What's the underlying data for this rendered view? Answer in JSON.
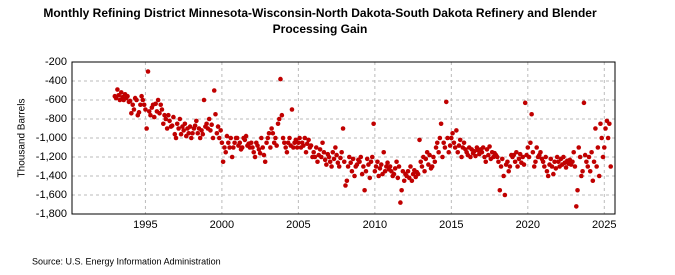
{
  "chart_data": {
    "type": "scatter",
    "title": "Monthly Refining District Minnesota-Wisconsin-North Dakota-South Dakota Refinery and Blender Processing Gain",
    "ylabel": "Thousand Barrels",
    "source": "Source: U.S. Energy Information Administration",
    "color": "#c00000",
    "grid": true,
    "xlim": [
      1990.2,
      2025.7
    ],
    "xticks": [
      1995,
      2000,
      2005,
      2010,
      2015,
      2020,
      2025
    ],
    "ylim": [
      -1800,
      -200
    ],
    "yticks": [
      -200,
      -400,
      -600,
      -800,
      {
        "value": -1000,
        "label": "-1,000"
      },
      {
        "value": -1200,
        "label": "-1,200"
      },
      {
        "value": -1400,
        "label": "-1,400"
      },
      {
        "value": -1600,
        "label": "-1,600"
      },
      {
        "value": -1800,
        "label": "-1,800"
      }
    ],
    "x": [
      1993.0,
      1993.08,
      1993.17,
      1993.25,
      1993.33,
      1993.42,
      1993.5,
      1993.58,
      1993.67,
      1993.75,
      1993.83,
      1993.92,
      1994.0,
      1994.08,
      1994.17,
      1994.25,
      1994.33,
      1994.42,
      1994.5,
      1994.58,
      1994.67,
      1994.75,
      1994.83,
      1994.92,
      1995.0,
      1995.08,
      1995.17,
      1995.25,
      1995.33,
      1995.42,
      1995.5,
      1995.58,
      1995.67,
      1995.75,
      1995.83,
      1995.92,
      1996.0,
      1996.08,
      1996.17,
      1996.25,
      1996.33,
      1996.42,
      1996.5,
      1996.58,
      1996.67,
      1996.75,
      1996.83,
      1996.92,
      1997.0,
      1997.08,
      1997.17,
      1997.25,
      1997.33,
      1997.42,
      1997.5,
      1997.58,
      1997.67,
      1997.75,
      1997.83,
      1997.92,
      1998.0,
      1998.08,
      1998.17,
      1998.25,
      1998.33,
      1998.42,
      1998.5,
      1998.58,
      1998.67,
      1998.75,
      1998.83,
      1998.92,
      1999.0,
      1999.08,
      1999.17,
      1999.25,
      1999.33,
      1999.42,
      1999.5,
      1999.58,
      1999.67,
      1999.75,
      1999.83,
      1999.92,
      2000.0,
      2000.08,
      2000.17,
      2000.25,
      2000.33,
      2000.42,
      2000.5,
      2000.58,
      2000.67,
      2000.75,
      2000.83,
      2000.92,
      2001.0,
      2001.08,
      2001.17,
      2001.25,
      2001.33,
      2001.42,
      2001.5,
      2001.58,
      2001.67,
      2001.75,
      2001.83,
      2001.92,
      2002.0,
      2002.08,
      2002.17,
      2002.25,
      2002.33,
      2002.42,
      2002.5,
      2002.58,
      2002.67,
      2002.75,
      2002.83,
      2002.92,
      2003.0,
      2003.08,
      2003.17,
      2003.25,
      2003.33,
      2003.42,
      2003.5,
      2003.58,
      2003.67,
      2003.75,
      2003.83,
      2003.92,
      2004.0,
      2004.08,
      2004.17,
      2004.25,
      2004.33,
      2004.42,
      2004.5,
      2004.58,
      2004.67,
      2004.75,
      2004.83,
      2004.92,
      2005.0,
      2005.08,
      2005.17,
      2005.25,
      2005.33,
      2005.42,
      2005.5,
      2005.58,
      2005.67,
      2005.75,
      2005.83,
      2005.92,
      2006.0,
      2006.08,
      2006.17,
      2006.25,
      2006.33,
      2006.42,
      2006.5,
      2006.58,
      2006.67,
      2006.75,
      2006.83,
      2006.92,
      2007.0,
      2007.08,
      2007.17,
      2007.25,
      2007.33,
      2007.42,
      2007.5,
      2007.58,
      2007.67,
      2007.75,
      2007.83,
      2007.92,
      2008.0,
      2008.08,
      2008.17,
      2008.25,
      2008.33,
      2008.42,
      2008.5,
      2008.58,
      2008.67,
      2008.75,
      2008.83,
      2008.92,
      2009.0,
      2009.08,
      2009.17,
      2009.25,
      2009.33,
      2009.42,
      2009.5,
      2009.58,
      2009.67,
      2009.75,
      2009.83,
      2009.92,
      2010.0,
      2010.08,
      2010.17,
      2010.25,
      2010.33,
      2010.42,
      2010.5,
      2010.58,
      2010.67,
      2010.75,
      2010.83,
      2010.92,
      2011.0,
      2011.08,
      2011.17,
      2011.25,
      2011.33,
      2011.42,
      2011.5,
      2011.58,
      2011.67,
      2011.75,
      2011.83,
      2011.92,
      2012.0,
      2012.08,
      2012.17,
      2012.25,
      2012.33,
      2012.42,
      2012.5,
      2012.58,
      2012.67,
      2012.75,
      2012.83,
      2012.92,
      2013.0,
      2013.08,
      2013.17,
      2013.25,
      2013.33,
      2013.42,
      2013.5,
      2013.58,
      2013.67,
      2013.75,
      2013.83,
      2013.92,
      2014.0,
      2014.08,
      2014.17,
      2014.25,
      2014.33,
      2014.42,
      2014.5,
      2014.58,
      2014.67,
      2014.75,
      2014.83,
      2014.92,
      2015.0,
      2015.08,
      2015.17,
      2015.25,
      2015.33,
      2015.42,
      2015.5,
      2015.58,
      2015.67,
      2015.75,
      2015.83,
      2015.92,
      2016.0,
      2016.08,
      2016.17,
      2016.25,
      2016.33,
      2016.42,
      2016.5,
      2016.58,
      2016.67,
      2016.75,
      2016.83,
      2016.92,
      2017.0,
      2017.08,
      2017.17,
      2017.25,
      2017.33,
      2017.42,
      2017.5,
      2017.58,
      2017.67,
      2017.75,
      2017.83,
      2017.92,
      2018.0,
      2018.08,
      2018.17,
      2018.25,
      2018.33,
      2018.42,
      2018.5,
      2018.58,
      2018.67,
      2018.75,
      2018.83,
      2018.92,
      2019.0,
      2019.08,
      2019.17,
      2019.25,
      2019.33,
      2019.42,
      2019.5,
      2019.58,
      2019.67,
      2019.75,
      2019.83,
      2019.92,
      2020.0,
      2020.08,
      2020.17,
      2020.25,
      2020.33,
      2020.42,
      2020.5,
      2020.58,
      2020.67,
      2020.75,
      2020.83,
      2020.92,
      2021.0,
      2021.08,
      2021.17,
      2021.25,
      2021.33,
      2021.42,
      2021.5,
      2021.58,
      2021.67,
      2021.75,
      2021.83,
      2021.92,
      2022.0,
      2022.08,
      2022.17,
      2022.25,
      2022.33,
      2022.42,
      2022.5,
      2022.58,
      2022.67,
      2022.75,
      2022.83,
      2022.92,
      2023.0,
      2023.08,
      2023.17,
      2023.25,
      2023.33,
      2023.42,
      2023.5,
      2023.58,
      2023.67,
      2023.75,
      2023.83,
      2023.92,
      2024.0,
      2024.08,
      2024.17,
      2024.25,
      2024.33,
      2024.42,
      2024.5,
      2024.58,
      2024.67,
      2024.75,
      2024.83,
      2024.92,
      2025.0,
      2025.08,
      2025.17,
      2025.25,
      2025.33,
      2025.42
    ],
    "values": [
      -560,
      -580,
      -490,
      -550,
      -600,
      -520,
      -570,
      -600,
      -540,
      -580,
      -560,
      -620,
      -610,
      -740,
      -650,
      -700,
      -580,
      -600,
      -760,
      -730,
      -650,
      -560,
      -600,
      -650,
      -700,
      -900,
      -300,
      -720,
      -760,
      -680,
      -650,
      -780,
      -640,
      -720,
      -600,
      -740,
      -650,
      -700,
      -850,
      -760,
      -800,
      -900,
      -760,
      -820,
      -880,
      -870,
      -780,
      -960,
      -1000,
      -850,
      -900,
      -800,
      -960,
      -880,
      -920,
      -850,
      -980,
      -900,
      -950,
      -880,
      -1000,
      -950,
      -900,
      -870,
      -820,
      -950,
      -900,
      -1000,
      -920,
      -960,
      -600,
      -880,
      -850,
      -900,
      -800,
      -920,
      -860,
      -1000,
      -500,
      -750,
      -950,
      -880,
      -1000,
      -920,
      -1050,
      -1250,
      -1100,
      -1150,
      -980,
      -1050,
      -1100,
      -1000,
      -1200,
      -1100,
      -1050,
      -1000,
      -1000,
      -1080,
      -1050,
      -1120,
      -1100,
      -1000,
      -1020,
      -980,
      -1080,
      -1060,
      -1100,
      -1050,
      -1100,
      -1150,
      -1200,
      -1050,
      -1080,
      -1120,
      -1160,
      -1000,
      -1100,
      -1180,
      -1250,
      -1050,
      -1000,
      -950,
      -1100,
      -900,
      -950,
      -1050,
      -1000,
      -1080,
      -850,
      -800,
      -380,
      -760,
      -1000,
      -1050,
      -1100,
      -1150,
      -1050,
      -1000,
      -1080,
      -700,
      -1100,
      -1050,
      -1020,
      -1100,
      -1050,
      -1000,
      -1100,
      -1050,
      -1080,
      -1000,
      -1150,
      -1060,
      -1020,
      -1100,
      -1080,
      -1200,
      -1150,
      -1200,
      -1100,
      -1250,
      -1180,
      -1120,
      -1200,
      -1050,
      -1150,
      -1230,
      -1280,
      -1170,
      -1200,
      -1250,
      -1300,
      -1150,
      -1220,
      -1100,
      -1180,
      -1260,
      -1300,
      -1210,
      -1150,
      -900,
      -1250,
      -1500,
      -1450,
      -1300,
      -1200,
      -1260,
      -1350,
      -1220,
      -1400,
      -1300,
      -1280,
      -1230,
      -1250,
      -1200,
      -1380,
      -1300,
      -1550,
      -1350,
      -1220,
      -1280,
      -1420,
      -1250,
      -1200,
      -850,
      -1350,
      -1300,
      -1250,
      -1400,
      -1320,
      -1280,
      -1380,
      -1150,
      -1350,
      -1300,
      -1260,
      -1330,
      -1300,
      -1350,
      -1400,
      -1380,
      -1320,
      -1250,
      -1420,
      -1300,
      -1680,
      -1550,
      -1350,
      -1450,
      -1380,
      -1400,
      -1350,
      -1420,
      -1300,
      -1450,
      -1380,
      -1340,
      -1410,
      -1360,
      -1380,
      -1020,
      -1250,
      -1300,
      -1200,
      -1350,
      -1220,
      -1150,
      -1280,
      -1180,
      -1320,
      -1300,
      -1200,
      -1250,
      -1100,
      -1050,
      -1150,
      -1000,
      -850,
      -1200,
      -1050,
      -1100,
      -620,
      -1000,
      -1150,
      -1080,
      -1000,
      -950,
      -1050,
      -1100,
      -920,
      -1150,
      -1080,
      -1020,
      -1200,
      -1100,
      -1050,
      -1120,
      -1150,
      -1180,
      -1100,
      -1200,
      -1120,
      -1160,
      -1140,
      -1190,
      -1100,
      -1130,
      -1170,
      -1120,
      -1150,
      -1100,
      -1200,
      -1250,
      -1120,
      -1180,
      -1090,
      -1220,
      -1150,
      -1200,
      -1160,
      -1180,
      -1200,
      -1250,
      -1550,
      -1300,
      -1220,
      -1400,
      -1600,
      -1280,
      -1250,
      -1350,
      -1300,
      -1180,
      -1200,
      -1180,
      -1250,
      -1150,
      -1300,
      -1220,
      -1170,
      -1260,
      -1200,
      -1280,
      -630,
      -1180,
      -1100,
      -1200,
      -1050,
      -750,
      -1150,
      -1300,
      -1250,
      -1100,
      -1200,
      -1180,
      -1150,
      -1220,
      -1250,
      -1300,
      -1200,
      -1350,
      -1400,
      -1280,
      -1220,
      -1300,
      -1380,
      -1250,
      -1320,
      -1200,
      -1250,
      -1300,
      -1220,
      -1280,
      -1200,
      -1260,
      -1310,
      -1240,
      -1270,
      -1230,
      -1280,
      -1250,
      -1150,
      -1300,
      -1720,
      -1550,
      -1100,
      -1200,
      -1400,
      -1350,
      -630,
      -1180,
      -1250,
      -1300,
      -1200,
      -1350,
      -1150,
      -1450,
      -1250,
      -900,
      -1300,
      -1100,
      -1400,
      -850,
      -1000,
      -1200,
      -1100,
      -900,
      -820,
      -1000,
      -850,
      -1300
    ]
  }
}
